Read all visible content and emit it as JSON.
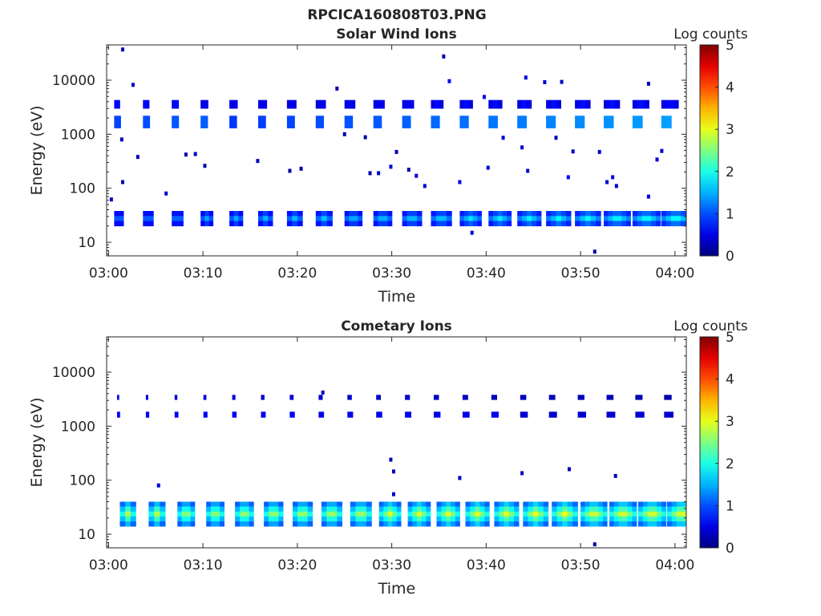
{
  "figure_title": "RPCICA160808T03.PNG",
  "chart_data": [
    {
      "type": "heatmap",
      "title": "Solar Wind Ions",
      "xlabel": "Time",
      "ylabel": "Energy (eV)",
      "x_ticks": [
        "03:00",
        "03:10",
        "03:20",
        "03:30",
        "03:40",
        "03:50",
        "04:00"
      ],
      "x_tick_minutes": [
        0,
        10,
        20,
        30,
        40,
        50,
        60
      ],
      "xlim_minutes": [
        -0.2,
        61.2
      ],
      "y_scale": "log",
      "ylim": [
        5.6,
        45000
      ],
      "y_ticks": [
        10,
        100,
        1000,
        10000
      ],
      "y_tick_labels": [
        "10",
        "100",
        "1000",
        "10000"
      ],
      "colorbar": {
        "label": "Log counts",
        "min": 0,
        "max": 5,
        "ticks": [
          "0",
          "1",
          "2",
          "3",
          "4",
          "5"
        ],
        "colormap": "jet"
      },
      "bands": [
        {
          "t_start": 0.6,
          "t_end": 62.0,
          "step": 3.05,
          "e_low": 20,
          "e_high": 38,
          "v_start": 1.1,
          "v_end": 1.7,
          "width_start": 1.0,
          "width_end": 3.2
        },
        {
          "t_start": 0.6,
          "t_end": 62.0,
          "step": 3.05,
          "e_low": 1300,
          "e_high": 2200,
          "v_start": 1.1,
          "v_end": 2.1,
          "width_start": 0.7,
          "width_end": 1.1
        },
        {
          "t_start": 0.6,
          "t_end": 62.0,
          "step": 3.05,
          "e_low": 3000,
          "e_high": 4300,
          "v_start": 0.7,
          "v_end": 0.8,
          "width_start": 0.6,
          "width_end": 1.9
        }
      ],
      "points": [
        [
          1.5,
          37000,
          0.4
        ],
        [
          2.6,
          8200,
          0.3
        ],
        [
          1.4,
          800,
          0.3
        ],
        [
          3.1,
          380,
          0.3
        ],
        [
          1.5,
          130,
          0.3
        ],
        [
          8.2,
          420,
          0.2
        ],
        [
          9.2,
          430,
          0.3
        ],
        [
          10.2,
          260,
          0.2
        ],
        [
          6.1,
          80,
          0.4
        ],
        [
          0.3,
          62,
          0.3
        ],
        [
          15.8,
          320,
          0.3
        ],
        [
          19.2,
          210,
          0.2
        ],
        [
          20.4,
          230,
          0.2
        ],
        [
          24.2,
          7000,
          0.2
        ],
        [
          25.0,
          1000,
          0.2
        ],
        [
          27.2,
          880,
          0.2
        ],
        [
          27.7,
          190,
          0.2
        ],
        [
          28.6,
          190,
          0.4
        ],
        [
          29.9,
          250,
          0.4
        ],
        [
          30.5,
          470,
          0.3
        ],
        [
          31.8,
          220,
          0.2
        ],
        [
          32.6,
          170,
          0.5
        ],
        [
          33.5,
          110,
          0.4
        ],
        [
          35.5,
          27500,
          0.2
        ],
        [
          36.1,
          9600,
          0.5
        ],
        [
          37.2,
          130,
          0.6
        ],
        [
          38.5,
          15,
          0.4
        ],
        [
          39.8,
          4900,
          0.5
        ],
        [
          40.2,
          240,
          0.4
        ],
        [
          41.8,
          860,
          0.4
        ],
        [
          43.8,
          570,
          0.4
        ],
        [
          44.2,
          11200,
          0.5
        ],
        [
          44.4,
          210,
          0.4
        ],
        [
          46.2,
          9200,
          0.4
        ],
        [
          48.0,
          9300,
          0.3
        ],
        [
          47.4,
          860,
          0.3
        ],
        [
          48.7,
          160,
          0.6
        ],
        [
          49.2,
          480,
          0.4
        ],
        [
          52.0,
          470,
          0.4
        ],
        [
          52.8,
          130,
          0.4
        ],
        [
          53.4,
          160,
          0.5
        ],
        [
          53.8,
          110,
          0.4
        ],
        [
          51.5,
          6.7,
          0.2
        ],
        [
          57.2,
          8600,
          0.3
        ],
        [
          58.1,
          340,
          0.4
        ],
        [
          58.6,
          490,
          0.4
        ],
        [
          57.2,
          70,
          0.5
        ]
      ]
    },
    {
      "type": "heatmap",
      "title": "Cometary Ions",
      "xlabel": "Time",
      "ylabel": "Energy (eV)",
      "x_ticks": [
        "03:00",
        "03:10",
        "03:20",
        "03:30",
        "03:40",
        "03:50",
        "04:00"
      ],
      "x_tick_minutes": [
        0,
        10,
        20,
        30,
        40,
        50,
        60
      ],
      "xlim_minutes": [
        -0.2,
        61.2
      ],
      "y_scale": "log",
      "ylim": [
        5.6,
        45000
      ],
      "y_ticks": [
        10,
        100,
        1000,
        10000
      ],
      "y_tick_labels": [
        "10",
        "100",
        "1000",
        "10000"
      ],
      "colorbar": {
        "label": "Log counts",
        "min": 0,
        "max": 5,
        "ticks": [
          "0",
          "1",
          "2",
          "3",
          "4",
          "5"
        ],
        "colormap": "jet"
      },
      "bands": [
        {
          "t_start": 1.2,
          "t_end": 62.0,
          "step": 3.05,
          "e_low": 14,
          "e_high": 40,
          "v_start": 2.3,
          "v_end": 2.6,
          "width_start": 1.7,
          "width_end": 3.1
        },
        {
          "t_start": 0.9,
          "t_end": 62.0,
          "step": 3.05,
          "e_low": 1450,
          "e_high": 1850,
          "v_start": 0.5,
          "v_end": 0.4,
          "width_start": 0.3,
          "width_end": 1.0
        },
        {
          "t_start": 0.9,
          "t_end": 62.0,
          "step": 3.05,
          "e_low": 3100,
          "e_high": 3800,
          "v_start": 0.4,
          "v_end": 0.2,
          "width_start": 0.2,
          "width_end": 0.8
        }
      ],
      "points": [
        [
          5.3,
          80,
          0.4
        ],
        [
          22.7,
          4200,
          0.3
        ],
        [
          29.9,
          240,
          0.3
        ],
        [
          30.2,
          145,
          0.3
        ],
        [
          30.2,
          55,
          0.4
        ],
        [
          37.2,
          110,
          0.3
        ],
        [
          43.8,
          135,
          0.3
        ],
        [
          48.8,
          160,
          0.3
        ],
        [
          53.7,
          120,
          0.3
        ],
        [
          51.5,
          6.5,
          0.2
        ]
      ]
    }
  ]
}
